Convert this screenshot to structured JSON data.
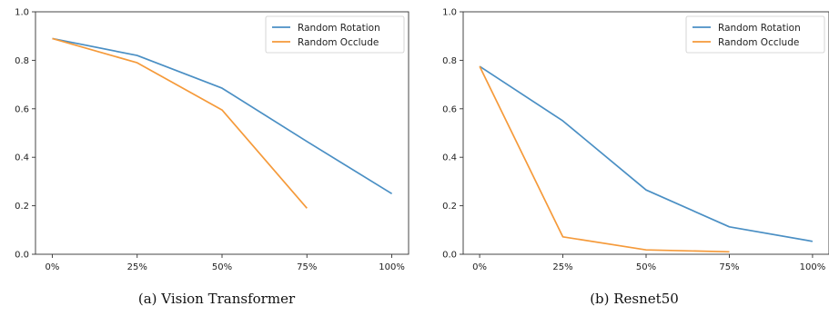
{
  "chart_data": [
    {
      "type": "line",
      "caption": "(a) Vision Transformer",
      "categories": [
        "0%",
        "25%",
        "50%",
        "75%",
        "100%"
      ],
      "ylim": [
        0,
        1.0
      ],
      "yticks": [
        "0.0",
        "0.2",
        "0.4",
        "0.6",
        "0.8",
        "1.0"
      ],
      "legend_position": "top-right",
      "series": [
        {
          "name": "Random Rotation",
          "color": "#4a8fc4",
          "values": [
            0.89,
            0.82,
            0.685,
            0.465,
            0.25
          ]
        },
        {
          "name": "Random Occlude",
          "color": "#f59a3a",
          "values": [
            0.89,
            0.79,
            0.595,
            0.19,
            null
          ]
        }
      ]
    },
    {
      "type": "line",
      "caption": "(b) Resnet50",
      "categories": [
        "0%",
        "25%",
        "50%",
        "75%",
        "100%"
      ],
      "ylim": [
        0,
        1.0
      ],
      "yticks": [
        "0.0",
        "0.2",
        "0.4",
        "0.6",
        "0.8",
        "1.0"
      ],
      "legend_position": "top-right",
      "series": [
        {
          "name": "Random Rotation",
          "color": "#4a8fc4",
          "values": [
            0.775,
            0.55,
            0.265,
            0.113,
            0.053
          ]
        },
        {
          "name": "Random Occlude",
          "color": "#f59a3a",
          "values": [
            0.775,
            0.072,
            0.018,
            0.01,
            null
          ]
        }
      ]
    }
  ]
}
